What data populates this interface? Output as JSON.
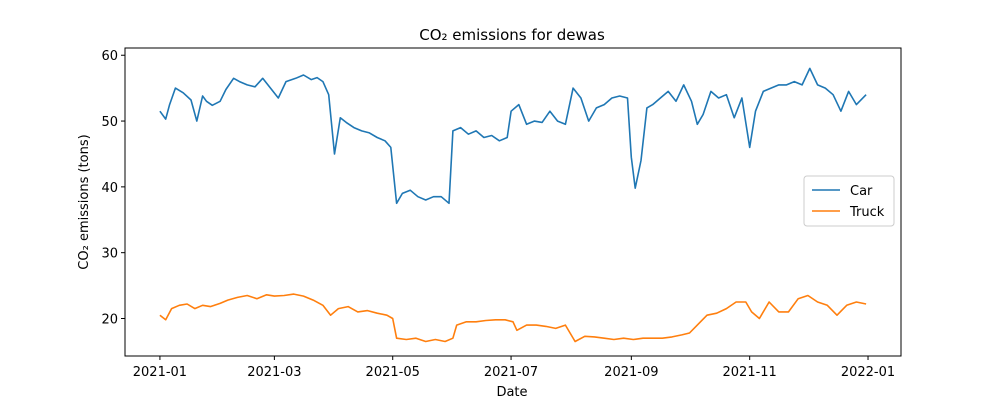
{
  "chart_data": {
    "type": "line",
    "title": "CO₂ emissions for dewas",
    "xlabel": "Date",
    "ylabel": "CO₂ emissions (tons)",
    "xlim": [
      "2020-12-14",
      "2022-01-18"
    ],
    "ylim": [
      14.3,
      61.1
    ],
    "grid": false,
    "legend_position": "center-right",
    "x_ticks": [
      "2021-01-01",
      "2021-03-01",
      "2021-05-01",
      "2021-07-01",
      "2021-09-01",
      "2021-11-01",
      "2022-01-01"
    ],
    "x_tick_labels": [
      "2021-01",
      "2021-03",
      "2021-05",
      "2021-07",
      "2021-09",
      "2021-11",
      "2022-01"
    ],
    "y_ticks": [
      20,
      30,
      40,
      50,
      60
    ],
    "y_tick_labels": [
      "20",
      "30",
      "40",
      "50",
      "60"
    ],
    "series": [
      {
        "name": "Car",
        "color": "#1f77b4",
        "x": [
          "2021-01-01",
          "2021-01-04",
          "2021-01-06",
          "2021-01-09",
          "2021-01-13",
          "2021-01-17",
          "2021-01-20",
          "2021-01-23",
          "2021-01-25",
          "2021-01-28",
          "2021-02-01",
          "2021-02-04",
          "2021-02-08",
          "2021-02-11",
          "2021-02-15",
          "2021-02-19",
          "2021-02-23",
          "2021-02-27",
          "2021-03-03",
          "2021-03-07",
          "2021-03-12",
          "2021-03-16",
          "2021-03-20",
          "2021-03-23",
          "2021-03-26",
          "2021-03-29",
          "2021-04-01",
          "2021-04-04",
          "2021-04-07",
          "2021-04-11",
          "2021-04-15",
          "2021-04-19",
          "2021-04-23",
          "2021-04-27",
          "2021-04-30",
          "2021-05-03",
          "2021-05-06",
          "2021-05-10",
          "2021-05-14",
          "2021-05-18",
          "2021-05-22",
          "2021-05-26",
          "2021-05-30",
          "2021-06-01",
          "2021-06-05",
          "2021-06-09",
          "2021-06-13",
          "2021-06-17",
          "2021-06-21",
          "2021-06-25",
          "2021-06-29",
          "2021-07-01",
          "2021-07-05",
          "2021-07-09",
          "2021-07-13",
          "2021-07-17",
          "2021-07-21",
          "2021-07-25",
          "2021-07-29",
          "2021-08-02",
          "2021-08-06",
          "2021-08-10",
          "2021-08-14",
          "2021-08-18",
          "2021-08-22",
          "2021-08-26",
          "2021-08-30",
          "2021-09-01",
          "2021-09-03",
          "2021-09-06",
          "2021-09-09",
          "2021-09-12",
          "2021-09-16",
          "2021-09-20",
          "2021-09-24",
          "2021-09-28",
          "2021-10-02",
          "2021-10-05",
          "2021-10-08",
          "2021-10-12",
          "2021-10-16",
          "2021-10-20",
          "2021-10-24",
          "2021-10-28",
          "2021-11-01",
          "2021-11-04",
          "2021-11-08",
          "2021-11-12",
          "2021-11-16",
          "2021-11-20",
          "2021-11-24",
          "2021-11-28",
          "2021-12-02",
          "2021-12-06",
          "2021-12-10",
          "2021-12-14",
          "2021-12-18",
          "2021-12-22",
          "2021-12-26",
          "2021-12-31"
        ],
        "y": [
          51.5,
          50.3,
          52.5,
          55.0,
          54.3,
          53.2,
          50.0,
          53.8,
          53.0,
          52.4,
          53.0,
          54.8,
          56.5,
          56.0,
          55.5,
          55.2,
          56.5,
          55.0,
          53.5,
          56.0,
          56.5,
          57.0,
          56.3,
          56.6,
          56.0,
          54.0,
          45.0,
          50.5,
          49.8,
          49.0,
          48.5,
          48.2,
          47.5,
          47.0,
          46.0,
          37.5,
          39.0,
          39.5,
          38.5,
          38.0,
          38.5,
          38.5,
          37.5,
          48.5,
          49.0,
          48.0,
          48.5,
          47.5,
          47.8,
          47.0,
          47.5,
          51.5,
          52.5,
          49.5,
          50.0,
          49.8,
          51.5,
          50.0,
          49.5,
          55.0,
          53.5,
          50.0,
          52.0,
          52.5,
          53.5,
          53.8,
          53.5,
          44.5,
          39.8,
          44.0,
          52.0,
          52.5,
          53.5,
          54.5,
          53.0,
          55.5,
          53.0,
          49.5,
          51.0,
          54.5,
          53.5,
          54.0,
          50.5,
          53.5,
          46.0,
          51.5,
          54.5,
          55.0,
          55.5,
          55.5,
          56.0,
          55.5,
          58.0,
          55.5,
          55.0,
          54.0,
          51.5,
          54.5,
          52.5,
          54.0
        ]
      },
      {
        "name": "Truck",
        "color": "#ff7f0e",
        "x": [
          "2021-01-01",
          "2021-01-04",
          "2021-01-07",
          "2021-01-11",
          "2021-01-15",
          "2021-01-19",
          "2021-01-23",
          "2021-01-27",
          "2021-02-01",
          "2021-02-05",
          "2021-02-10",
          "2021-02-15",
          "2021-02-20",
          "2021-02-25",
          "2021-03-01",
          "2021-03-06",
          "2021-03-11",
          "2021-03-16",
          "2021-03-21",
          "2021-03-26",
          "2021-03-30",
          "2021-04-03",
          "2021-04-08",
          "2021-04-13",
          "2021-04-18",
          "2021-04-23",
          "2021-04-28",
          "2021-05-01",
          "2021-05-03",
          "2021-05-08",
          "2021-05-13",
          "2021-05-18",
          "2021-05-23",
          "2021-05-28",
          "2021-06-01",
          "2021-06-03",
          "2021-06-08",
          "2021-06-13",
          "2021-06-18",
          "2021-06-23",
          "2021-06-28",
          "2021-07-02",
          "2021-07-04",
          "2021-07-09",
          "2021-07-14",
          "2021-07-19",
          "2021-07-24",
          "2021-07-29",
          "2021-08-03",
          "2021-08-08",
          "2021-08-13",
          "2021-08-18",
          "2021-08-23",
          "2021-08-28",
          "2021-09-02",
          "2021-09-07",
          "2021-09-12",
          "2021-09-17",
          "2021-09-22",
          "2021-09-27",
          "2021-10-01",
          "2021-10-05",
          "2021-10-10",
          "2021-10-15",
          "2021-10-20",
          "2021-10-25",
          "2021-10-30",
          "2021-11-02",
          "2021-11-06",
          "2021-11-11",
          "2021-11-16",
          "2021-11-21",
          "2021-11-26",
          "2021-12-01",
          "2021-12-06",
          "2021-12-11",
          "2021-12-16",
          "2021-12-21",
          "2021-12-26",
          "2021-12-31"
        ],
        "y": [
          20.5,
          19.8,
          21.5,
          22.0,
          22.2,
          21.5,
          22.0,
          21.8,
          22.3,
          22.8,
          23.2,
          23.5,
          23.0,
          23.6,
          23.4,
          23.5,
          23.7,
          23.4,
          22.8,
          22.0,
          20.5,
          21.5,
          21.8,
          21.0,
          21.2,
          20.8,
          20.5,
          20.0,
          17.0,
          16.8,
          17.0,
          16.5,
          16.8,
          16.5,
          17.0,
          19.0,
          19.5,
          19.5,
          19.7,
          19.8,
          19.8,
          19.5,
          18.2,
          19.0,
          19.0,
          18.8,
          18.5,
          19.0,
          16.5,
          17.3,
          17.2,
          17.0,
          16.8,
          17.0,
          16.8,
          17.0,
          17.0,
          17.0,
          17.2,
          17.5,
          17.8,
          19.0,
          20.5,
          20.8,
          21.5,
          22.5,
          22.5,
          21.0,
          20.0,
          22.5,
          21.0,
          21.0,
          23.0,
          23.5,
          22.5,
          22.0,
          20.5,
          22.0,
          22.5,
          22.2
        ]
      }
    ]
  }
}
